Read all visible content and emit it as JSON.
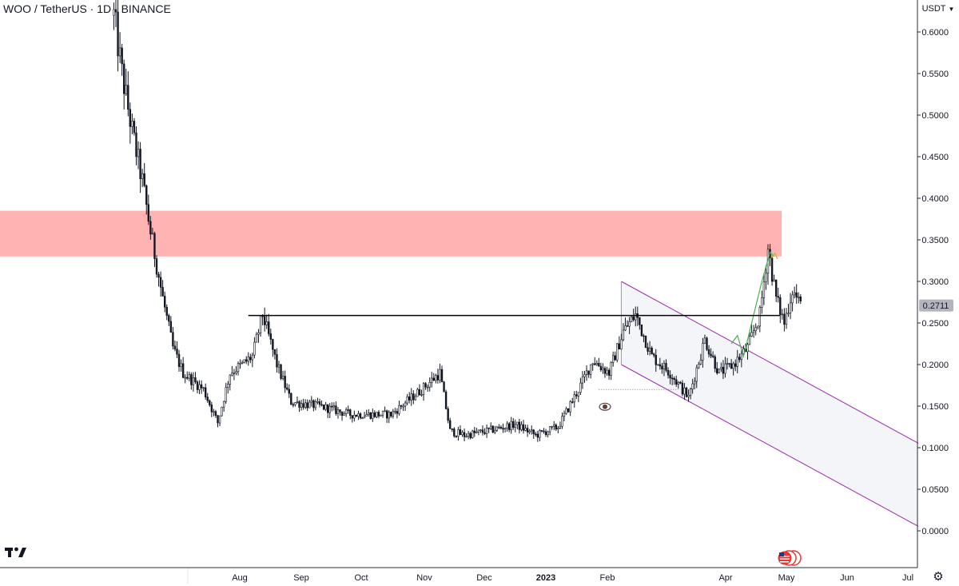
{
  "header": {
    "symbol": "WOO",
    "sep1": " / ",
    "quote": "TetherUS",
    "sep2": " · ",
    "interval": "1D",
    "sep3": " · ",
    "exchange": "BINANCE"
  },
  "currency_selector": {
    "label": "USDT"
  },
  "last_price_label": "0.2711",
  "icons": {
    "logo": "tradingview-logo-icon",
    "flag": "us-flag-icon",
    "settings": "gear-icon",
    "eye": "eye-icon"
  },
  "colors": {
    "candle": "#131722",
    "resistance_zone": "#ffb3b3",
    "channel_line": "#9c27b0",
    "channel_fill": "#f3f5f9",
    "arrow": "#4caf50",
    "level_line": "#000000"
  },
  "chart_data": {
    "type": "candlestick",
    "title": "",
    "x_ticks": [
      "Aug",
      "Sep",
      "Oct",
      "Nov",
      "Dec",
      "2023",
      "Feb",
      "Apr",
      "May",
      "Jun",
      "Jul"
    ],
    "y_ticks": [
      "0.6000",
      "0.5500",
      "0.5000",
      "0.4500",
      "0.4000",
      "0.3500",
      "0.3000",
      "0.2500",
      "0.2000",
      "0.1500",
      "0.1000",
      "0.0500",
      "0.0000"
    ],
    "ylim": [
      -0.03,
      0.63
    ],
    "last_price": 0.2711,
    "resistance_zone": {
      "low": 0.33,
      "high": 0.385
    },
    "horizontal_level": 0.259,
    "price_path": [
      [
        "2022-06-01",
        0.62
      ],
      [
        "2022-06-05",
        0.55
      ],
      [
        "2022-06-10",
        0.48
      ],
      [
        "2022-06-15",
        0.42
      ],
      [
        "2022-06-19",
        0.36
      ],
      [
        "2022-06-25",
        0.28
      ],
      [
        "2022-06-30",
        0.22
      ],
      [
        "2022-07-05",
        0.19
      ],
      [
        "2022-07-15",
        0.17
      ],
      [
        "2022-07-22",
        0.13
      ],
      [
        "2022-07-28",
        0.19
      ],
      [
        "2022-08-03",
        0.2
      ],
      [
        "2022-08-08",
        0.21
      ],
      [
        "2022-08-13",
        0.26
      ],
      [
        "2022-08-20",
        0.2
      ],
      [
        "2022-08-27",
        0.155
      ],
      [
        "2022-09-10",
        0.15
      ],
      [
        "2022-09-25",
        0.14
      ],
      [
        "2022-10-15",
        0.14
      ],
      [
        "2022-10-30",
        0.17
      ],
      [
        "2022-11-08",
        0.19
      ],
      [
        "2022-11-13",
        0.12
      ],
      [
        "2022-11-20",
        0.115
      ],
      [
        "2022-12-01",
        0.12
      ],
      [
        "2022-12-15",
        0.128
      ],
      [
        "2022-12-25",
        0.115
      ],
      [
        "2023-01-05",
        0.125
      ],
      [
        "2023-01-15",
        0.17
      ],
      [
        "2023-01-22",
        0.205
      ],
      [
        "2023-01-30",
        0.19
      ],
      [
        "2023-02-06",
        0.24
      ],
      [
        "2023-02-12",
        0.26
      ],
      [
        "2023-02-20",
        0.21
      ],
      [
        "2023-03-01",
        0.19
      ],
      [
        "2023-03-10",
        0.16
      ],
      [
        "2023-03-18",
        0.23
      ],
      [
        "2023-03-25",
        0.19
      ],
      [
        "2023-04-01",
        0.2
      ],
      [
        "2023-04-08",
        0.22
      ],
      [
        "2023-04-14",
        0.26
      ],
      [
        "2023-04-18",
        0.34
      ],
      [
        "2023-04-22",
        0.28
      ],
      [
        "2023-04-26",
        0.25
      ],
      [
        "2023-04-30",
        0.29
      ],
      [
        "2023-05-04",
        0.271
      ]
    ],
    "descending_channel": {
      "upper": [
        [
          "2023-02-05",
          0.3
        ],
        [
          "2023-07-31",
          0.065
        ]
      ],
      "lower": [
        [
          "2023-02-05",
          0.2
        ],
        [
          "2023-07-31",
          -0.035
        ]
      ]
    },
    "annotations": [
      {
        "type": "arrow-path",
        "points": [
          [
            "2023-03-31",
            0.225
          ],
          [
            "2023-04-03",
            0.235
          ],
          [
            "2023-04-06",
            0.21
          ],
          [
            "2023-04-15",
            0.3
          ],
          [
            "2023-04-19",
            0.335
          ],
          [
            "2023-04-21",
            0.33
          ]
        ]
      },
      {
        "type": "dotted-range",
        "points": [
          [
            "2023-01-25",
            0.17
          ],
          [
            "2023-03-05",
            0.17
          ]
        ]
      },
      {
        "type": "eye",
        "points": [
          [
            "2023-01-28",
            0.155
          ]
        ]
      }
    ]
  }
}
